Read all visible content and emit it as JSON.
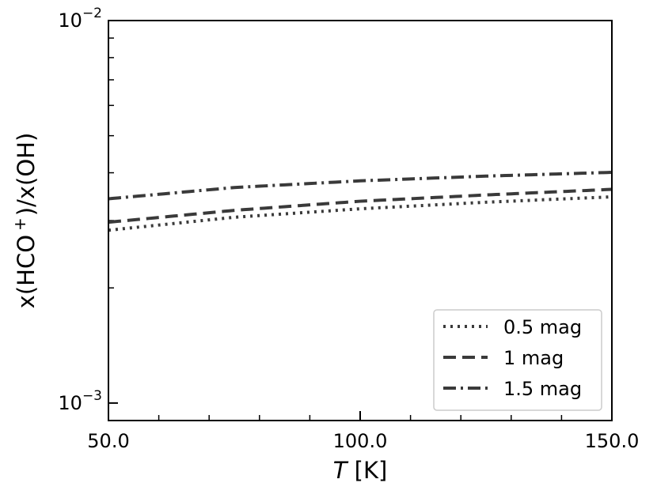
{
  "chart_data": {
    "type": "line",
    "title": "",
    "xlabel_italic": "T",
    "xlabel_rest": " [K]",
    "ylabel_main": "x(HCO",
    "ylabel_sup": "+",
    "ylabel_tail": ")/x(OH)",
    "x_scale": "linear",
    "y_scale": "log",
    "xlim": [
      50,
      150
    ],
    "ylim": [
      0.0009,
      0.01
    ],
    "x_ticks": [
      {
        "value": 50,
        "label": "50.0"
      },
      {
        "value": 100,
        "label": "100.0"
      },
      {
        "value": 150,
        "label": "150.0"
      }
    ],
    "y_major_ticks": [
      {
        "value": 0.001,
        "base": "10",
        "exp": "−3"
      },
      {
        "value": 0.01,
        "base": "10",
        "exp": "−2"
      }
    ],
    "legend_position": "lower-right",
    "series": [
      {
        "name": "0.5 mag",
        "dash": "dotted",
        "x": [
          50,
          75,
          100,
          125,
          150
        ],
        "y": [
          0.00283,
          0.00306,
          0.00322,
          0.00335,
          0.00346
        ]
      },
      {
        "name": "1 mag",
        "dash": "dashed",
        "x": [
          50,
          75,
          100,
          125,
          150
        ],
        "y": [
          0.00297,
          0.00319,
          0.00337,
          0.0035,
          0.00362
        ]
      },
      {
        "name": "1.5 mag",
        "dash": "dashdot",
        "x": [
          50,
          75,
          100,
          125,
          150
        ],
        "y": [
          0.00342,
          0.00366,
          0.00381,
          0.00392,
          0.00401
        ]
      }
    ],
    "line_color": "#3a3a3a"
  }
}
